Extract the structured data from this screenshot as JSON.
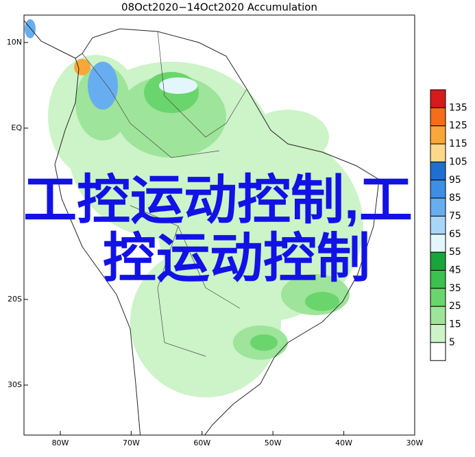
{
  "title": "08Oct2020−14Oct2020 Accumulation",
  "lat_labels": [
    "10N",
    "EQ",
    "20S",
    "30S"
  ],
  "lon_labels": [
    "80W",
    "70W",
    "60W",
    "50W",
    "40W",
    "30W"
  ],
  "colorbar": {
    "labels": [
      135,
      125,
      115,
      105,
      95,
      85,
      75,
      65,
      55,
      45,
      35,
      25,
      15,
      5
    ],
    "colors": [
      "#d7191c",
      "#f46d1a",
      "#f9a63a",
      "#fcd98a",
      "#1f6fd0",
      "#3d8fe6",
      "#67aef0",
      "#a8d6f8",
      "#e2f6fb",
      "#17a53c",
      "#3cc050",
      "#6ad56c",
      "#9ee49a",
      "#cdf3c8",
      "#ffffff"
    ]
  },
  "overlay": {
    "line1": "工控运动控制,工",
    "line2": "控运动控制"
  }
}
